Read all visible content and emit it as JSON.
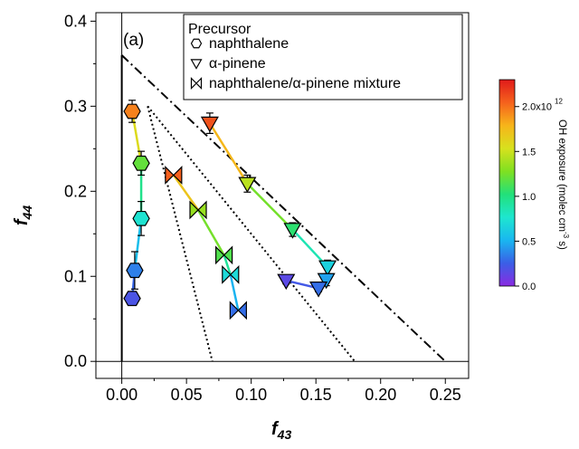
{
  "chart_data": {
    "type": "scatter",
    "panel_label": "(a)",
    "xlabel_main": "f",
    "xlabel_sub": "43",
    "ylabel_main": "f",
    "ylabel_sub": "44",
    "xlim": [
      -0.02,
      0.268
    ],
    "ylim": [
      -0.02,
      0.41
    ],
    "x_ticks": [
      0.0,
      0.05,
      0.1,
      0.15,
      0.2,
      0.25
    ],
    "x_tick_labels": [
      "0.00",
      "0.05",
      "0.10",
      "0.15",
      "0.20",
      "0.25"
    ],
    "y_ticks": [
      0.0,
      0.1,
      0.2,
      0.3,
      0.4
    ],
    "y_tick_labels": [
      "0.0",
      "0.1",
      "0.2",
      "0.3",
      "0.4"
    ],
    "legend": {
      "title": "Precursor",
      "placement": "top-right",
      "entries": [
        {
          "label": "naphthalene",
          "marker": "hexagon"
        },
        {
          "label": "α-pinene",
          "marker": "triangle-down"
        },
        {
          "label": "naphthalene/α-pinene mixture",
          "marker": "bowtie"
        }
      ]
    },
    "colorbar": {
      "label": "OH exposure (molec cm",
      "label_sup": "-3",
      "label_end": " s)",
      "range": [
        0,
        2300000000000.0
      ],
      "ticks": [
        0.0,
        0.5,
        1.0,
        1.5,
        2.0
      ],
      "tick_labels": [
        "0.0",
        "0.5",
        "1.0",
        "1.5",
        "2.0x10"
      ],
      "top_tick_exp": "12",
      "colors": [
        "#8a2be2",
        "#3a5fe6",
        "#19b7f0",
        "#1ee6cf",
        "#22e07a",
        "#7fe021",
        "#d7e11e",
        "#f7b51a",
        "#f5621d",
        "#e01a1a"
      ]
    },
    "triangle_lines": [
      {
        "style": "dash-dot",
        "points": [
          [
            0.0,
            0.36
          ],
          [
            0.25,
            0.0
          ]
        ]
      },
      {
        "style": "solid",
        "points": [
          [
            0.0,
            0.36
          ],
          [
            0.0,
            0.0
          ]
        ]
      },
      {
        "style": "dotted",
        "points": [
          [
            0.02,
            0.3
          ],
          [
            0.07,
            0.0
          ]
        ]
      },
      {
        "style": "dotted",
        "points": [
          [
            0.02,
            0.3
          ],
          [
            0.18,
            0.0
          ]
        ]
      }
    ],
    "series": [
      {
        "marker": "hexagon",
        "points": [
          {
            "x": 0.008,
            "y": 0.294,
            "err": 0.013,
            "oh": 1950000000000.0
          },
          {
            "x": 0.015,
            "y": 0.233,
            "err": 0.014,
            "oh": 1200000000000.0
          },
          {
            "x": 0.015,
            "y": 0.168,
            "err": 0.02,
            "oh": 750000000000.0
          },
          {
            "x": 0.01,
            "y": 0.107,
            "err": 0.022,
            "oh": 350000000000.0
          },
          {
            "x": 0.008,
            "y": 0.074,
            "err": 0.007,
            "oh": 200000000000.0
          }
        ]
      },
      {
        "marker": "triangle-down",
        "points": [
          {
            "x": 0.068,
            "y": 0.28,
            "err": 0.012,
            "oh": 2100000000000.0
          },
          {
            "x": 0.097,
            "y": 0.209,
            "err": 0.01,
            "oh": 1450000000000.0
          },
          {
            "x": 0.132,
            "y": 0.155,
            "err": 0.008,
            "oh": 1050000000000.0
          },
          {
            "x": 0.159,
            "y": 0.111,
            "err": 0.008,
            "oh": 650000000000.0
          },
          {
            "x": 0.158,
            "y": 0.096,
            "err": 0.007,
            "oh": 450000000000.0
          },
          {
            "x": 0.127,
            "y": 0.095,
            "err": 0.004,
            "oh": 150000000000.0
          },
          {
            "x": 0.152,
            "y": 0.086,
            "err": 0.004,
            "oh": 300000000000.0
          }
        ]
      },
      {
        "marker": "bowtie",
        "points": [
          {
            "x": 0.04,
            "y": 0.219,
            "err": 0.0,
            "oh": 2050000000000.0
          },
          {
            "x": 0.059,
            "y": 0.178,
            "err": 0.0,
            "oh": 1350000000000.0
          },
          {
            "x": 0.079,
            "y": 0.125,
            "err": 0.0,
            "oh": 1150000000000.0
          },
          {
            "x": 0.084,
            "y": 0.102,
            "err": 0.0,
            "oh": 700000000000.0
          },
          {
            "x": 0.09,
            "y": 0.06,
            "err": 0.0,
            "oh": 300000000000.0
          }
        ]
      }
    ]
  }
}
